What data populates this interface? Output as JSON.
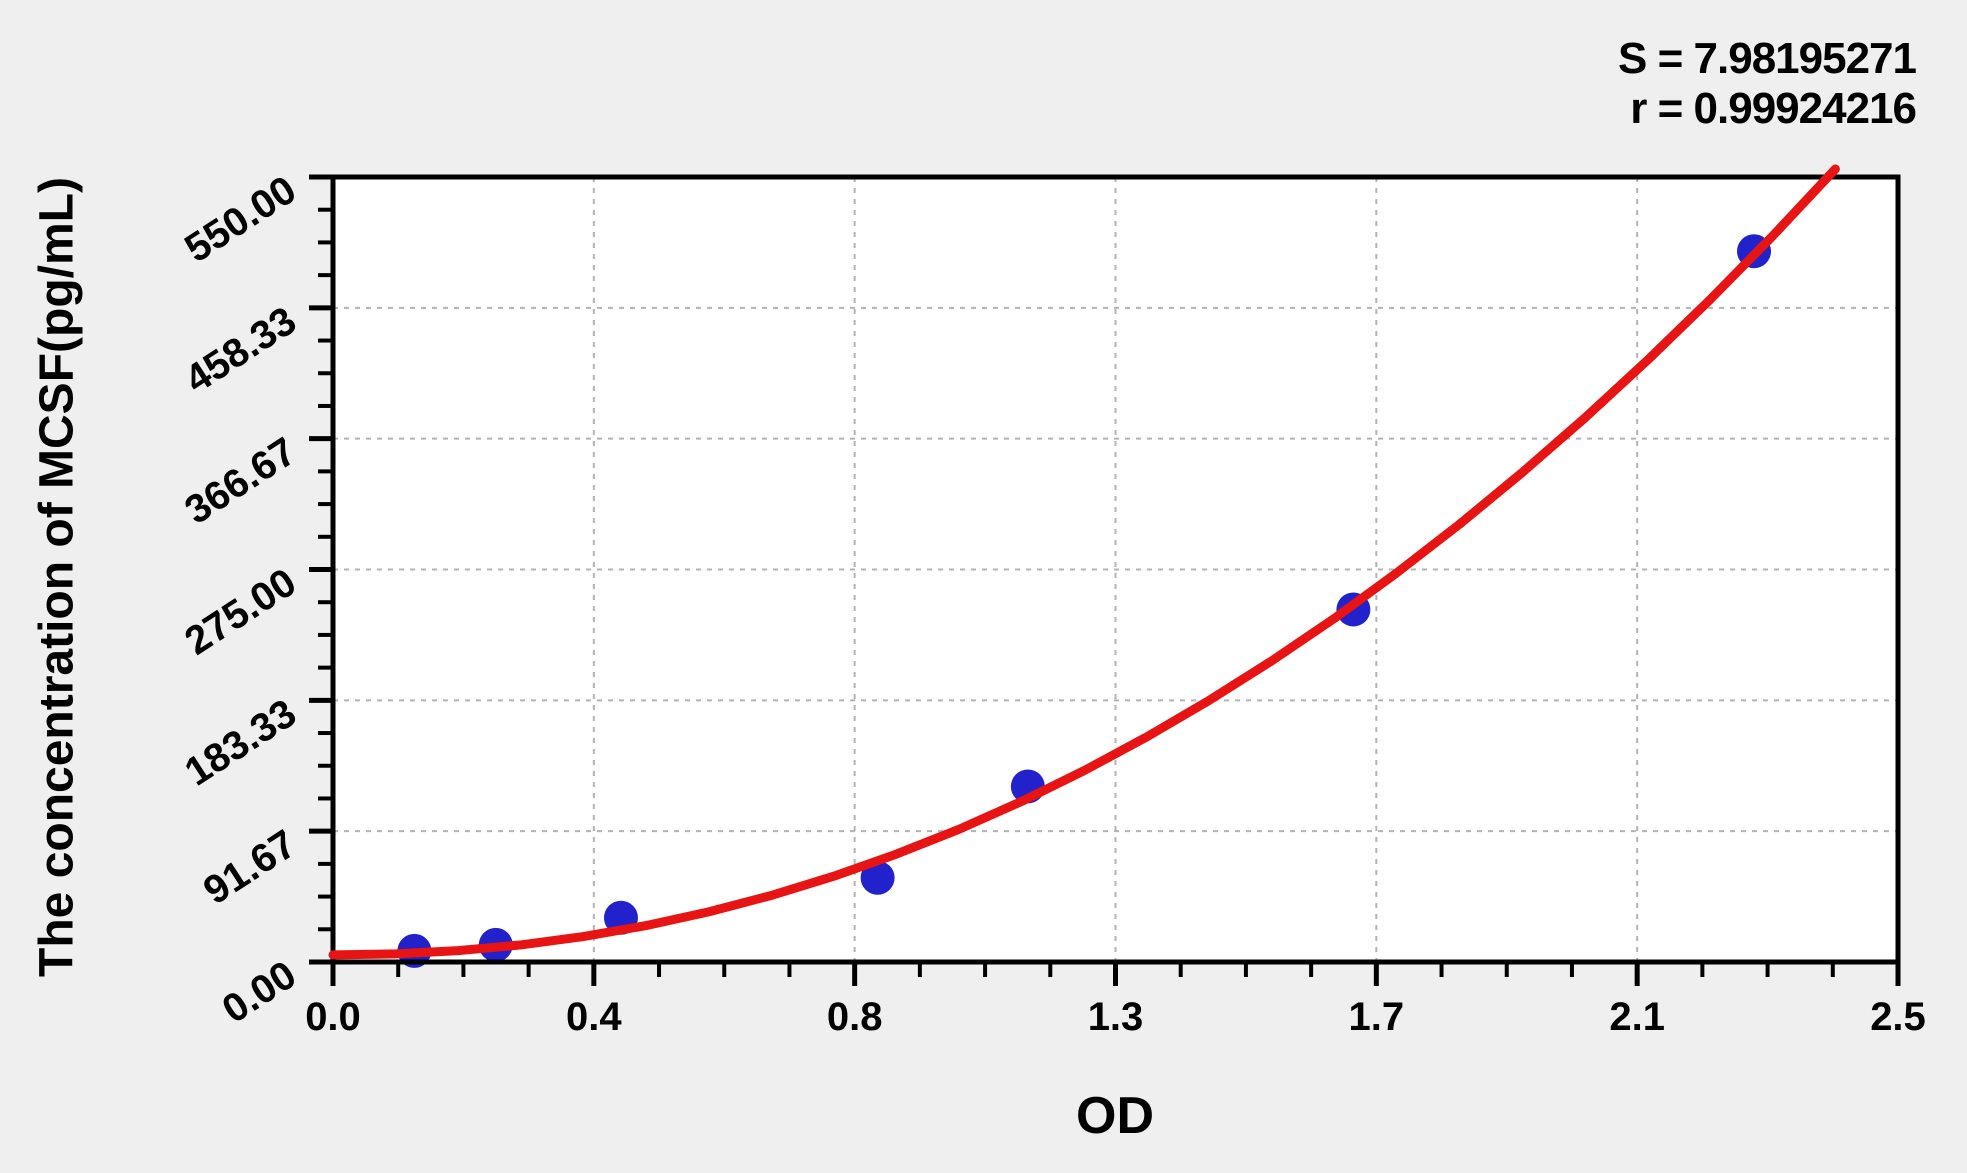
{
  "chart_data": {
    "type": "scatter",
    "title": "",
    "xlabel": "OD",
    "ylabel": "The concentration of MCSF(pg/mL)",
    "xlim": [
      0,
      2.5
    ],
    "ylim": [
      0,
      550
    ],
    "x_major_ticks": [
      0,
      0.41667,
      0.83333,
      1.25,
      1.66667,
      2.08333,
      2.5
    ],
    "x_tick_labels": [
      "0.0",
      "0.4",
      "0.8",
      "1.3",
      "1.7",
      "2.1",
      "2.5"
    ],
    "y_major_ticks": [
      0,
      91.667,
      183.333,
      275,
      366.667,
      458.333,
      550
    ],
    "y_tick_labels": [
      "0.00",
      "91.67",
      "183.33",
      "275.00",
      "366.67",
      "458.33",
      "550.00"
    ],
    "minor_subdivisions": 4,
    "grid": "major-dashed",
    "legend": "none",
    "annotations": [
      "S = 7.98195271",
      "r = 0.99924216"
    ],
    "points": [
      [
        0.13,
        7.8
      ],
      [
        0.26,
        12
      ],
      [
        0.46,
        31
      ],
      [
        0.87,
        59
      ],
      [
        1.11,
        123
      ],
      [
        1.63,
        247
      ],
      [
        2.27,
        498
      ]
    ],
    "fit_curve": [
      [
        0.0,
        5.0
      ],
      [
        0.1,
        5.7
      ],
      [
        0.2,
        8.0
      ],
      [
        0.3,
        12.0
      ],
      [
        0.4,
        17.8
      ],
      [
        0.5,
        25.5
      ],
      [
        0.6,
        35.1
      ],
      [
        0.7,
        46.6
      ],
      [
        0.8,
        60.1
      ],
      [
        0.9,
        75.6
      ],
      [
        1.0,
        93.0
      ],
      [
        1.1,
        112.5
      ],
      [
        1.2,
        134.1
      ],
      [
        1.3,
        157.7
      ],
      [
        1.4,
        183.4
      ],
      [
        1.5,
        211.1
      ],
      [
        1.6,
        240.9
      ],
      [
        1.7,
        272.9
      ],
      [
        1.8,
        306.9
      ],
      [
        1.9,
        343.0
      ],
      [
        2.0,
        381.3
      ],
      [
        2.1,
        421.7
      ],
      [
        2.2,
        464.2
      ],
      [
        2.3,
        508.8
      ],
      [
        2.4,
        555.6
      ]
    ],
    "colors": {
      "curve": "#e81414",
      "points": "#2222cc",
      "grid": "#b3b3b3",
      "axis": "#000000",
      "plot_bg": "#ffffff",
      "page_bg": "#efefef",
      "text": "#000000"
    }
  }
}
